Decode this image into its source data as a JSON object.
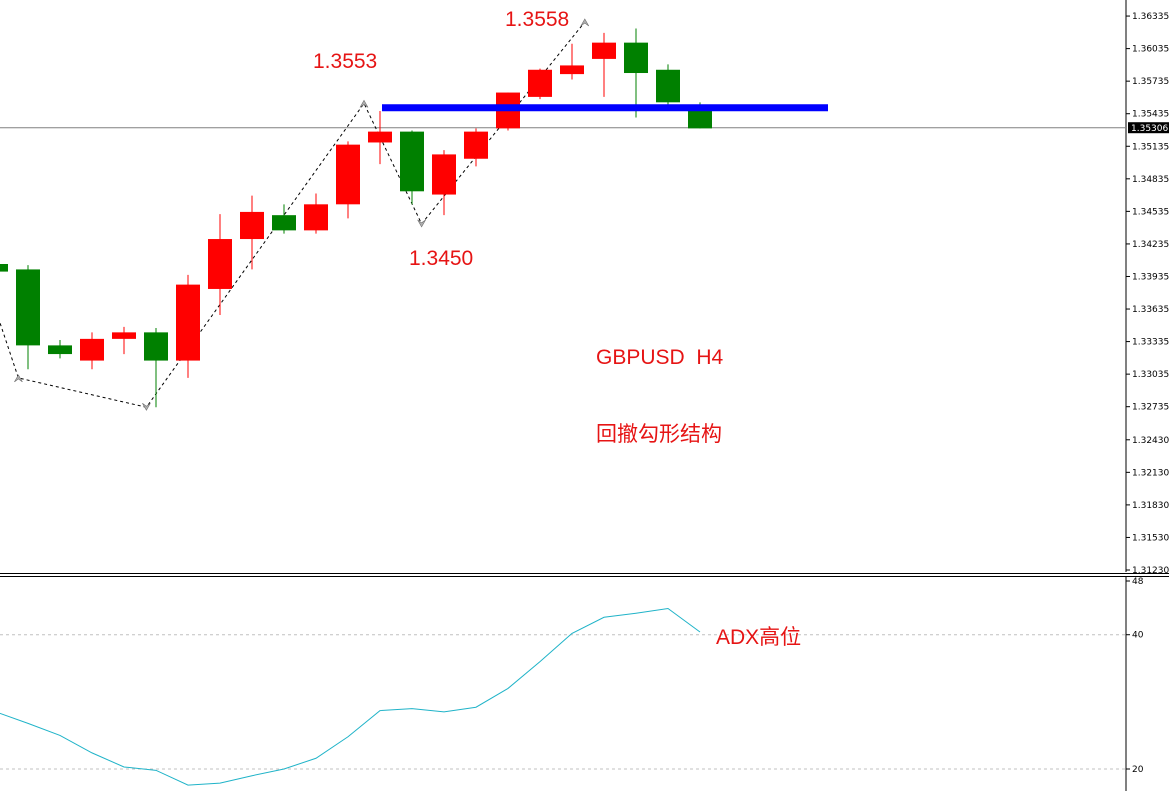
{
  "chart_data": [
    {
      "type": "candlestick",
      "symbol_label": "GBPUSD  H4",
      "pattern_label": "回撤勾形结构",
      "ylim": [
        1.3123,
        1.364
      ],
      "y_ticks": [
        "1.36335",
        "1.36035",
        "1.35735",
        "1.35435",
        "1.35135",
        "1.34835",
        "1.34535",
        "1.34235",
        "1.33935",
        "1.33635",
        "1.33335",
        "1.33035",
        "1.32735",
        "1.32430",
        "1.32130",
        "1.31830",
        "1.31530",
        "1.31230"
      ],
      "current_price": "1.35306",
      "colors": {
        "bull": "#ff0000",
        "bear": "#008000",
        "resistance": "#0000ff",
        "zigzag": "#000000",
        "current_line": "#808080"
      },
      "resistance_level": 1.3549,
      "annotations": [
        {
          "text": "1.3553",
          "value": 1.3553
        },
        {
          "text": "1.3450",
          "value": 1.345
        },
        {
          "text": "1.3558",
          "value": 1.3558
        }
      ],
      "zigzag": [
        {
          "bar": -1,
          "value": 1.345
        },
        {
          "bar": 0.7,
          "value": 1.33
        },
        {
          "bar": 4.7,
          "value": 1.3273
        },
        {
          "bar": 11.5,
          "value": 1.3553
        },
        {
          "bar": 13.3,
          "value": 1.3442
        },
        {
          "bar": 18.4,
          "value": 1.3628
        }
      ],
      "candles": [
        {
          "o": 1.3405,
          "h": 1.341,
          "l": 1.3395,
          "c": 1.3398
        },
        {
          "o": 1.34,
          "h": 1.3404,
          "l": 1.3308,
          "c": 1.333
        },
        {
          "o": 1.333,
          "h": 1.3335,
          "l": 1.3318,
          "c": 1.3322
        },
        {
          "o": 1.3316,
          "h": 1.3342,
          "l": 1.3308,
          "c": 1.3336
        },
        {
          "o": 1.3336,
          "h": 1.3347,
          "l": 1.3322,
          "c": 1.3342
        },
        {
          "o": 1.3342,
          "h": 1.3346,
          "l": 1.3273,
          "c": 1.3316
        },
        {
          "o": 1.3316,
          "h": 1.3395,
          "l": 1.33,
          "c": 1.3386
        },
        {
          "o": 1.3382,
          "h": 1.3451,
          "l": 1.3358,
          "c": 1.3428
        },
        {
          "o": 1.3428,
          "h": 1.3468,
          "l": 1.34,
          "c": 1.3453
        },
        {
          "o": 1.345,
          "h": 1.346,
          "l": 1.3433,
          "c": 1.3436
        },
        {
          "o": 1.3436,
          "h": 1.347,
          "l": 1.3433,
          "c": 1.346
        },
        {
          "o": 1.346,
          "h": 1.3518,
          "l": 1.3447,
          "c": 1.3515
        },
        {
          "o": 1.3517,
          "h": 1.3546,
          "l": 1.3497,
          "c": 1.3527
        },
        {
          "o": 1.3527,
          "h": 1.3528,
          "l": 1.346,
          "c": 1.3472
        },
        {
          "o": 1.3469,
          "h": 1.351,
          "l": 1.345,
          "c": 1.3506
        },
        {
          "o": 1.3502,
          "h": 1.353,
          "l": 1.3495,
          "c": 1.3527
        },
        {
          "o": 1.353,
          "h": 1.3563,
          "l": 1.3528,
          "c": 1.3563
        },
        {
          "o": 1.3559,
          "h": 1.3585,
          "l": 1.3557,
          "c": 1.3584
        },
        {
          "o": 1.358,
          "h": 1.3608,
          "l": 1.3575,
          "c": 1.3588
        },
        {
          "o": 1.3594,
          "h": 1.3618,
          "l": 1.3559,
          "c": 1.3609
        },
        {
          "o": 1.3609,
          "h": 1.3622,
          "l": 1.354,
          "c": 1.3581
        },
        {
          "o": 1.3584,
          "h": 1.3589,
          "l": 1.3551,
          "c": 1.3554
        },
        {
          "o": 1.3552,
          "h": 1.3554,
          "l": 1.353,
          "c": 1.353
        }
      ]
    },
    {
      "type": "line",
      "indicator_label": "ADX高位",
      "ylim": [
        18.4,
        49.1
      ],
      "y_ticks": [
        "48",
        "40",
        "20"
      ],
      "levels": [
        40,
        20
      ],
      "color": "#1fb3c8",
      "values": [
        28.5,
        26.8,
        25.0,
        22.4,
        20.3,
        19.8,
        17.6,
        17.9,
        19.0,
        20.0,
        21.6,
        24.8,
        28.7,
        29.0,
        28.5,
        29.2,
        32.0,
        36.0,
        40.2,
        42.6,
        43.2,
        43.9,
        40.4
      ]
    }
  ]
}
